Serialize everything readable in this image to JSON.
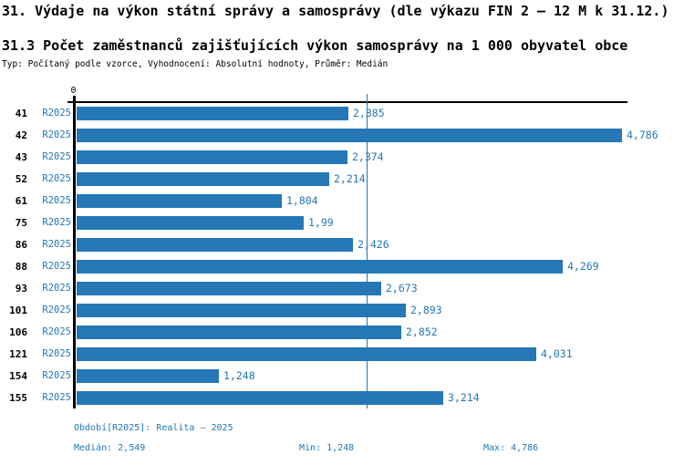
{
  "header": {
    "title": "31. Výdaje na výkon státní správy a samosprávy (dle výkazu FIN 2 – 12 M k 31.12.)",
    "subtitle": "31.3 Počet zaměstnanců zajišťujících výkon samosprávy na 1 000 obyvatel obce",
    "meta": "Typ: Počítaný podle vzorce, Vyhodnocení: Absolutní hodnoty, Průměr: Medián"
  },
  "chart_data": {
    "type": "bar",
    "orientation": "horizontal",
    "title": "31.3 Počet zaměstnanců zajišťujících výkon samosprávy na 1 000 obyvatel obce",
    "categories": [
      "41",
      "42",
      "43",
      "52",
      "61",
      "75",
      "86",
      "88",
      "93",
      "101",
      "106",
      "121",
      "154",
      "155"
    ],
    "series": [
      {
        "name": "R2025",
        "values": [
          2.385,
          4.786,
          2.374,
          2.214,
          1.804,
          1.99,
          2.426,
          4.269,
          2.673,
          2.893,
          2.852,
          4.031,
          1.248,
          3.214
        ],
        "value_labels": [
          "2,385",
          "4,786",
          "2,374",
          "2,214",
          "1,804",
          "1,99",
          "2,426",
          "4,269",
          "2,673",
          "2,893",
          "2,852",
          "4,031",
          "1,248",
          "3,214"
        ]
      }
    ],
    "axis": {
      "origin_tick_label": "0",
      "xlim": [
        0,
        4.84
      ],
      "grid": false,
      "median_reference_line": 2.549
    },
    "legend_position": "bottom"
  },
  "footer": {
    "period_label": "Období[R2025]: Realita – 2025",
    "median_label": "Medián: 2,549",
    "min_label": "Min: 1,248",
    "max_label": "Max: 4,786"
  },
  "colors": {
    "bar": "#2577B5",
    "accent_text": "#2577B5",
    "axis": "#000000",
    "title_text": "#000000",
    "background": "#ffffff"
  },
  "layout_values": {
    "median_value": 2.549
  }
}
